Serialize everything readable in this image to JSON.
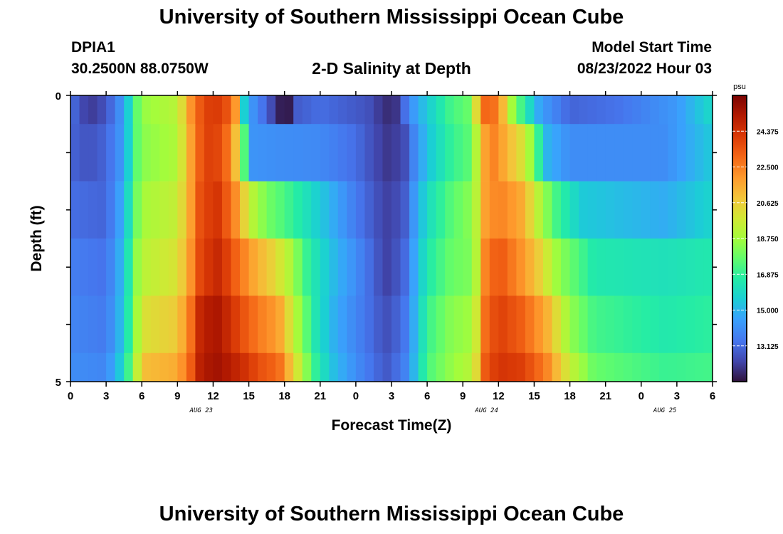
{
  "header": {
    "title": "University of Southern Mississippi Ocean Cube",
    "station_id": "DPIA1",
    "station_coords": "30.2500N  88.0750W",
    "plot_title": "2-D Salinity at Depth",
    "model_label": "Model Start Time",
    "model_start": "08/23/2022 Hour 03"
  },
  "footer": {
    "title": "University of Southern Mississippi Ocean Cube"
  },
  "chart_data": {
    "type": "heatmap",
    "xlabel": "Forecast Time(Z)",
    "ylabel": "Depth (ft)",
    "x_tick_labels": [
      "0",
      "3",
      "6",
      "9",
      "12",
      "15",
      "18",
      "21",
      "0",
      "3",
      "6",
      "9",
      "12",
      "15",
      "18",
      "21",
      "0",
      "3",
      "6"
    ],
    "date_labels": [
      {
        "text": "AUG 23",
        "at_hour": 11
      },
      {
        "text": "AUG 24",
        "at_hour": 35
      },
      {
        "text": "AUG 25",
        "at_hour": 50
      }
    ],
    "x_range_hours": [
      0,
      54
    ],
    "y_tick_labels": [
      "0",
      "5"
    ],
    "ylim": [
      0,
      5
    ],
    "depth_levels": 5,
    "colorbar": {
      "unit": "psu",
      "min": 11.25,
      "max": 26.25,
      "tick_labels": [
        "24.375",
        "22.500",
        "20.625",
        "18.750",
        "16.875",
        "15.000",
        "13.125"
      ],
      "tick_values": [
        24.375,
        22.5,
        20.625,
        18.75,
        16.875,
        15.0,
        13.125
      ]
    },
    "salinity_keyframes": [
      {
        "depth_band": "0-0.5",
        "points": [
          [
            0,
            13.3
          ],
          [
            1.5,
            12.0
          ],
          [
            3,
            12.6
          ],
          [
            4.5,
            14.5
          ],
          [
            5.5,
            17.5
          ],
          [
            6,
            18.5
          ],
          [
            9,
            19.2
          ],
          [
            9.5,
            20.5
          ],
          [
            10.5,
            23.0
          ],
          [
            12,
            24.3
          ],
          [
            13.5,
            23.3
          ],
          [
            14,
            21.5
          ],
          [
            14.5,
            16.0
          ],
          [
            15,
            14.5
          ],
          [
            16,
            13.5
          ],
          [
            17,
            12.3
          ],
          [
            17.8,
            11.3
          ],
          [
            18.3,
            11.3
          ],
          [
            19,
            12.8
          ],
          [
            21,
            13.2
          ],
          [
            25,
            12.6
          ],
          [
            26.5,
            11.8
          ],
          [
            27.5,
            12.0
          ],
          [
            28.5,
            14.0
          ],
          [
            30,
            15.5
          ],
          [
            32,
            17.2
          ],
          [
            34,
            18.0
          ],
          [
            34.2,
            21.5
          ],
          [
            35,
            23.3
          ],
          [
            36,
            22.5
          ],
          [
            37,
            19.0
          ],
          [
            38,
            17.0
          ],
          [
            39.5,
            14.5
          ],
          [
            42,
            13.0
          ],
          [
            46,
            13.3
          ],
          [
            51,
            14.3
          ],
          [
            54,
            16.0
          ]
        ]
      },
      {
        "depth_band": "0.5-1.5",
        "points": [
          [
            0,
            13.0
          ],
          [
            1.5,
            12.6
          ],
          [
            3,
            13.0
          ],
          [
            4.5,
            14.5
          ],
          [
            5.5,
            17.5
          ],
          [
            6,
            18.3
          ],
          [
            9,
            19.0
          ],
          [
            10,
            21.5
          ],
          [
            11,
            23.5
          ],
          [
            12,
            24.2
          ],
          [
            13.5,
            22.5
          ],
          [
            14.5,
            18.5
          ],
          [
            15,
            14.2
          ],
          [
            18,
            14.0
          ],
          [
            21,
            13.9
          ],
          [
            24,
            13.2
          ],
          [
            26.5,
            12.0
          ],
          [
            28,
            12.3
          ],
          [
            29,
            14.0
          ],
          [
            30,
            15.3
          ],
          [
            32,
            16.9
          ],
          [
            34,
            17.8
          ],
          [
            34.3,
            21.0
          ],
          [
            35.5,
            22.5
          ],
          [
            36.5,
            21.5
          ],
          [
            38,
            20.0
          ],
          [
            39,
            18.0
          ],
          [
            40,
            15.0
          ],
          [
            42,
            14.0
          ],
          [
            50,
            14.0
          ],
          [
            54,
            15.5
          ]
        ]
      },
      {
        "depth_band": "1.5-2.5",
        "points": [
          [
            0,
            13.2
          ],
          [
            3,
            13.0
          ],
          [
            4.5,
            15.0
          ],
          [
            5.5,
            17.8
          ],
          [
            6,
            18.8
          ],
          [
            9,
            19.5
          ],
          [
            10,
            21.5
          ],
          [
            11,
            23.8
          ],
          [
            12.5,
            24.3
          ],
          [
            14,
            22.0
          ],
          [
            15,
            19.5
          ],
          [
            16.5,
            18.0
          ],
          [
            18,
            17.3
          ],
          [
            21,
            15.5
          ],
          [
            24,
            13.5
          ],
          [
            26.5,
            12.2
          ],
          [
            28,
            12.6
          ],
          [
            29,
            14.5
          ],
          [
            30,
            16.0
          ],
          [
            32,
            17.5
          ],
          [
            34,
            18.5
          ],
          [
            34.5,
            21.5
          ],
          [
            36,
            22.5
          ],
          [
            38,
            21.5
          ],
          [
            39.5,
            19.0
          ],
          [
            41,
            17.0
          ],
          [
            43,
            15.5
          ],
          [
            50,
            14.8
          ],
          [
            54,
            15.8
          ]
        ]
      },
      {
        "depth_band": "2.5-3.5",
        "points": [
          [
            0,
            13.6
          ],
          [
            3,
            13.3
          ],
          [
            4.5,
            15.3
          ],
          [
            5.5,
            18.3
          ],
          [
            6,
            19.2
          ],
          [
            9,
            20.0
          ],
          [
            10,
            21.8
          ],
          [
            11,
            24.0
          ],
          [
            12.5,
            24.7
          ],
          [
            14,
            23.0
          ],
          [
            15.5,
            21.5
          ],
          [
            17,
            20.5
          ],
          [
            18.5,
            19.0
          ],
          [
            20,
            16.8
          ],
          [
            22,
            15.2
          ],
          [
            24,
            14.0
          ],
          [
            26.5,
            12.2
          ],
          [
            28,
            12.9
          ],
          [
            29,
            14.8
          ],
          [
            30,
            16.5
          ],
          [
            32,
            17.8
          ],
          [
            34,
            18.2
          ],
          [
            34.5,
            22.0
          ],
          [
            36,
            23.5
          ],
          [
            38,
            22.0
          ],
          [
            39.5,
            20.5
          ],
          [
            41,
            18.5
          ],
          [
            44,
            16.5
          ],
          [
            50,
            16.2
          ],
          [
            54,
            16.5
          ]
        ]
      },
      {
        "depth_band": "3.5-4.5",
        "points": [
          [
            0,
            13.8
          ],
          [
            3,
            13.5
          ],
          [
            4.5,
            15.5
          ],
          [
            5.5,
            18.5
          ],
          [
            6,
            20.0
          ],
          [
            9,
            20.7
          ],
          [
            10,
            22.5
          ],
          [
            11,
            25.0
          ],
          [
            12.5,
            25.3
          ],
          [
            14.5,
            23.5
          ],
          [
            16,
            22.5
          ],
          [
            17.5,
            21.8
          ],
          [
            19,
            19.0
          ],
          [
            20.5,
            16.5
          ],
          [
            22,
            15.0
          ],
          [
            24,
            13.8
          ],
          [
            26.5,
            12.5
          ],
          [
            28,
            13.2
          ],
          [
            29,
            15.0
          ],
          [
            30,
            17.0
          ],
          [
            32,
            18.3
          ],
          [
            34,
            18.8
          ],
          [
            34.5,
            22.5
          ],
          [
            36,
            24.0
          ],
          [
            38,
            23.2
          ],
          [
            40,
            21.5
          ],
          [
            42,
            18.5
          ],
          [
            44,
            17.2
          ],
          [
            50,
            16.5
          ],
          [
            54,
            16.8
          ]
        ]
      },
      {
        "depth_band": "4.5-5",
        "points": [
          [
            0,
            14.0
          ],
          [
            3,
            13.8
          ],
          [
            4.5,
            16.0
          ],
          [
            5.5,
            19.0
          ],
          [
            6,
            21.0
          ],
          [
            9,
            21.5
          ],
          [
            10,
            23.0
          ],
          [
            11,
            25.2
          ],
          [
            12.5,
            25.5
          ],
          [
            14.5,
            24.5
          ],
          [
            16,
            23.5
          ],
          [
            17.5,
            23.0
          ],
          [
            19,
            20.0
          ],
          [
            20.5,
            17.0
          ],
          [
            22,
            15.3
          ],
          [
            24,
            14.0
          ],
          [
            26.5,
            12.7
          ],
          [
            28,
            13.5
          ],
          [
            29,
            15.2
          ],
          [
            30,
            17.3
          ],
          [
            32,
            18.5
          ],
          [
            34,
            19.3
          ],
          [
            34.5,
            23.0
          ],
          [
            36,
            24.3
          ],
          [
            38,
            24.0
          ],
          [
            40,
            22.5
          ],
          [
            42,
            19.5
          ],
          [
            44,
            17.8
          ],
          [
            50,
            17.0
          ],
          [
            54,
            17.2
          ]
        ]
      }
    ]
  }
}
